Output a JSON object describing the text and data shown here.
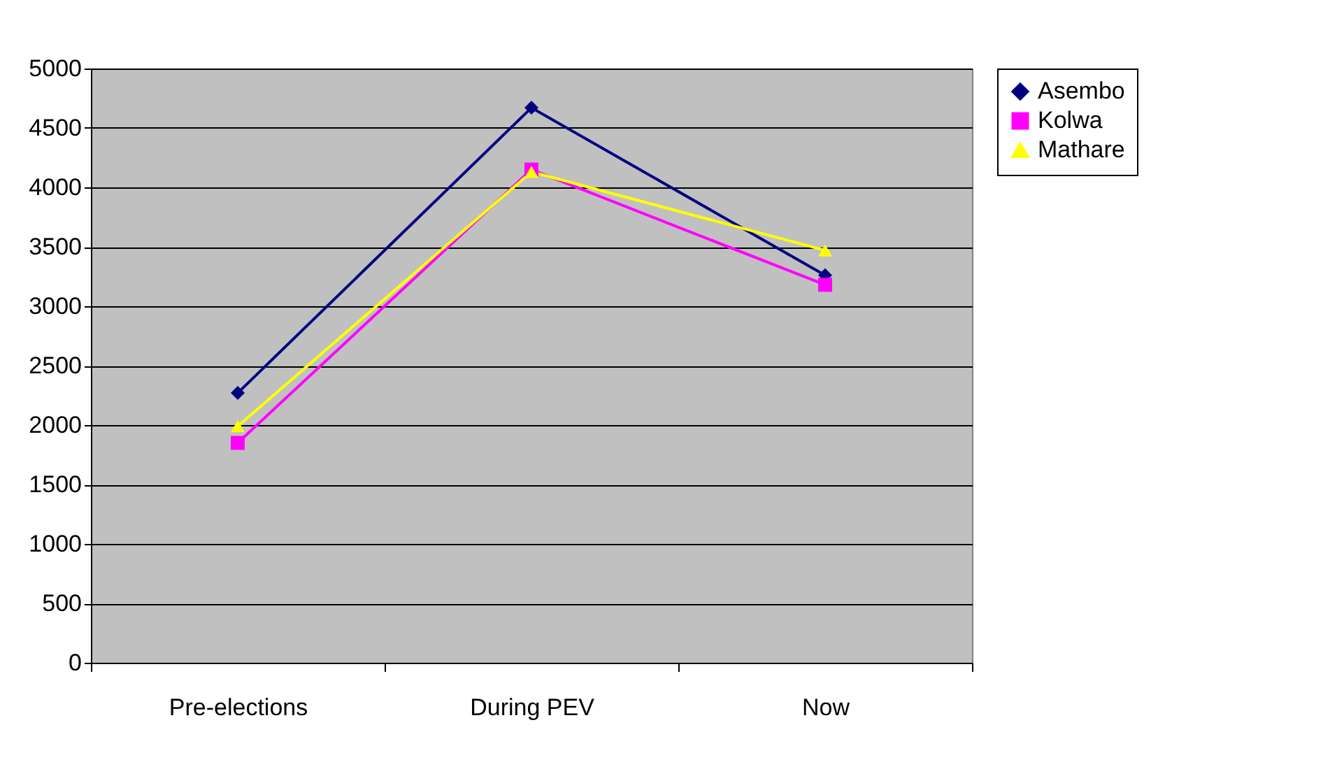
{
  "chart_data": {
    "type": "line",
    "categories": [
      "Pre-elections",
      "During PEV",
      "Now"
    ],
    "series": [
      {
        "name": "Asembo",
        "color": "#000080",
        "marker": "diamond",
        "values": [
          2270,
          4670,
          3260
        ]
      },
      {
        "name": "Kolwa",
        "color": "#ff00ff",
        "marker": "square",
        "values": [
          1850,
          4150,
          3180
        ]
      },
      {
        "name": "Mathare",
        "color": "#ffff00",
        "marker": "triangle",
        "values": [
          1990,
          4130,
          3470
        ]
      }
    ],
    "ylim": [
      0,
      5000
    ],
    "yticks": [
      0,
      500,
      1000,
      1500,
      2000,
      2500,
      3000,
      3500,
      4000,
      4500,
      5000
    ],
    "grid": "y",
    "legend": "right",
    "line_style": "solid"
  }
}
